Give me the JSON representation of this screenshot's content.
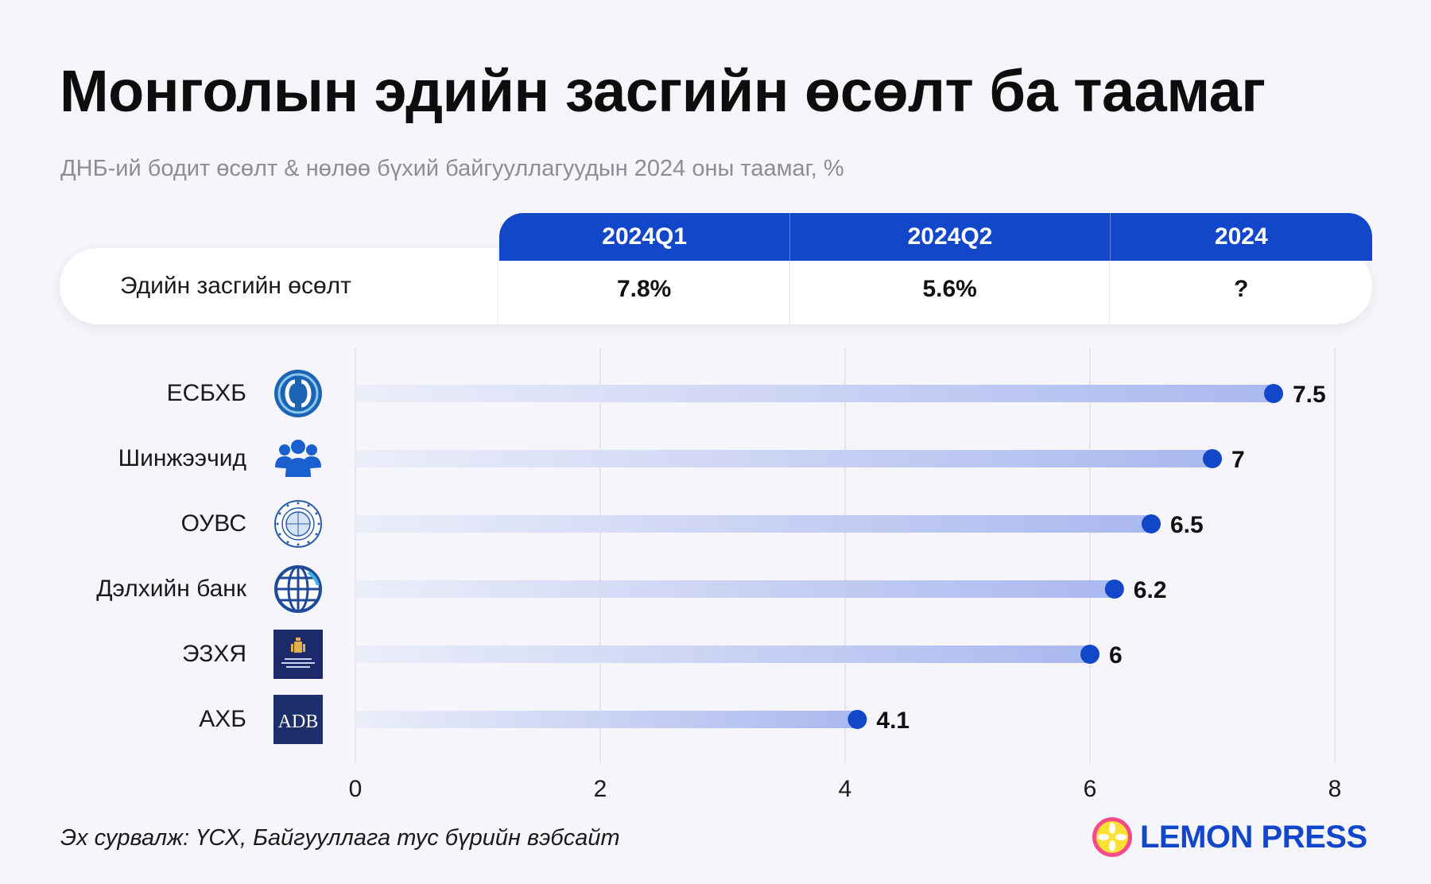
{
  "title": "Монголын эдийн засгийн өсөлт ба таамаг",
  "subtitle": "ДНБ-ий бодит өсөлт & нөлөө бүхий байгууллагуудын 2024 оны таамаг, %",
  "summary_table": {
    "columns": [
      "2024Q1",
      "2024Q2",
      "2024"
    ],
    "row_label": "Эдийн засгийн өсөлт",
    "values": [
      "7.8%",
      "5.6%",
      "?"
    ]
  },
  "chart_data": {
    "type": "bar",
    "orientation": "horizontal",
    "categories": [
      "ЕСБХБ",
      "Шинжээчид",
      "ОУВС",
      "Дэлхийн банк",
      "ЭЗХЯ",
      "АХБ"
    ],
    "values": [
      7.5,
      7,
      6.5,
      6.2,
      6,
      4.1
    ],
    "value_labels": [
      "7.5",
      "7",
      "6.5",
      "6.2",
      "6",
      "4.1"
    ],
    "xlim": [
      0,
      8
    ],
    "xticks": [
      "0",
      "2",
      "4",
      "6",
      "8"
    ],
    "grid": true,
    "logo_icons": [
      "ebrd-logo-icon",
      "people-group-icon",
      "imf-seal-icon",
      "globe-icon",
      "ministry-emblem-icon",
      "adb-logo-icon"
    ],
    "adb_logo_text": "ADB",
    "colors": {
      "bar_end": "#a9b8ef",
      "bar_start": "#eceef9",
      "dot": "#1347c9"
    }
  },
  "source": "Эх сурвалж: ҮСХ, Байгууллага тус бүрийн вэбсайт",
  "brand": "LEMON PRESS"
}
